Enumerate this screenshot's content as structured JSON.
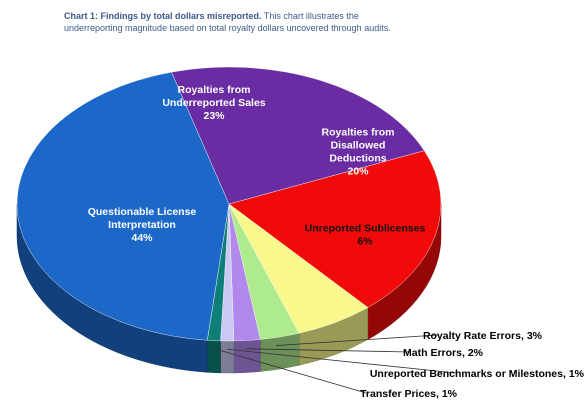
{
  "caption": {
    "lead": "Chart 1:  Findings by total dollars misreported.",
    "text": " This chart illustrates the underreporting magnitude based on total royalty dollars uncovered through audits."
  },
  "chart_data": {
    "type": "pie",
    "three_d": true,
    "title": "Chart 1:  Findings by total dollars misreported.",
    "slices": [
      {
        "label": "Royalties from Disallowed Deductions",
        "value": 20,
        "value_label": "20%",
        "color": "#f00a0a",
        "label_inside": true
      },
      {
        "label": "Unreported Sublicenses",
        "value": 6,
        "value_label": "6%",
        "color": "#f8f88c",
        "label_inside": true
      },
      {
        "label": "Royalty Rate Errors",
        "value": 3,
        "value_label": "3%",
        "color": "#aeea8e",
        "label_inside": false
      },
      {
        "label": "Math Errors",
        "value": 2,
        "value_label": "2%",
        "color": "#b188ec",
        "label_inside": false
      },
      {
        "label": "Unreported Benchmarks or Milestones",
        "value": 1,
        "value_label": "1%",
        "color": "#c9c9f4",
        "label_inside": false
      },
      {
        "label": "Transfer Prices",
        "value": 1,
        "value_label": "1%",
        "color": "#0e7f78",
        "label_inside": false
      },
      {
        "label": "Questionable License Interpretation",
        "value": 44,
        "value_label": "44%",
        "color": "#1c68c8",
        "label_inside": true
      },
      {
        "label": "Royalties from Underreported Sales",
        "value": 23,
        "value_label": "23%",
        "color": "#6a2ca2",
        "label_inside": true
      }
    ]
  }
}
